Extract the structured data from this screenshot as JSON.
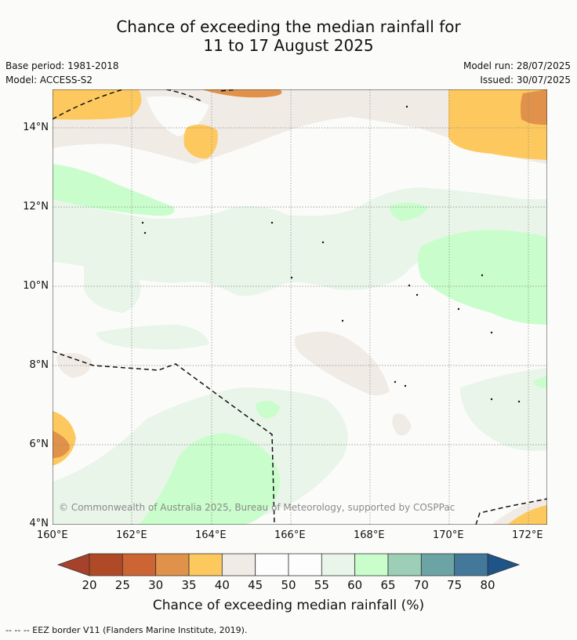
{
  "title_line1": "Chance of exceeding the median rainfall for",
  "title_line2": "11 to 17 August 2025",
  "meta": {
    "base_period": "Base period: 1981-2018",
    "model": "Model: ACCESS-S2",
    "model_run": "Model run: 28/07/2025",
    "issued": "Issued: 30/07/2025"
  },
  "axes": {
    "lat_ticks": [
      "14°N",
      "12°N",
      "10°N",
      "8°N",
      "6°N",
      "4°N"
    ],
    "lon_ticks": [
      "160°E",
      "162°E",
      "164°E",
      "166°E",
      "168°E",
      "170°E",
      "172°E"
    ]
  },
  "copyright": "© Commonwealth of Australia 2025, Bureau of Meteorology, supported by COSPPac",
  "colorbar": {
    "ticks": [
      "20",
      "25",
      "30",
      "35",
      "40",
      "45",
      "50",
      "55",
      "60",
      "65",
      "70",
      "75",
      "80"
    ],
    "colors": [
      "#b04a26",
      "#cc6533",
      "#e0924a",
      "#fdc95f",
      "#f1ebe6",
      "#fdfdfd",
      "#fdfdfd",
      "#e9f5e9",
      "#c9fdcb",
      "#9ccfb5",
      "#6ca3a5",
      "#43789a"
    ],
    "low_color": "#a8412b",
    "high_color": "#1e5488",
    "label": "Chance of exceeding median rainfall (%)"
  },
  "footnote": "--  --  -- EEZ border V11 (Flanders Marine Institute, 2019)."
}
